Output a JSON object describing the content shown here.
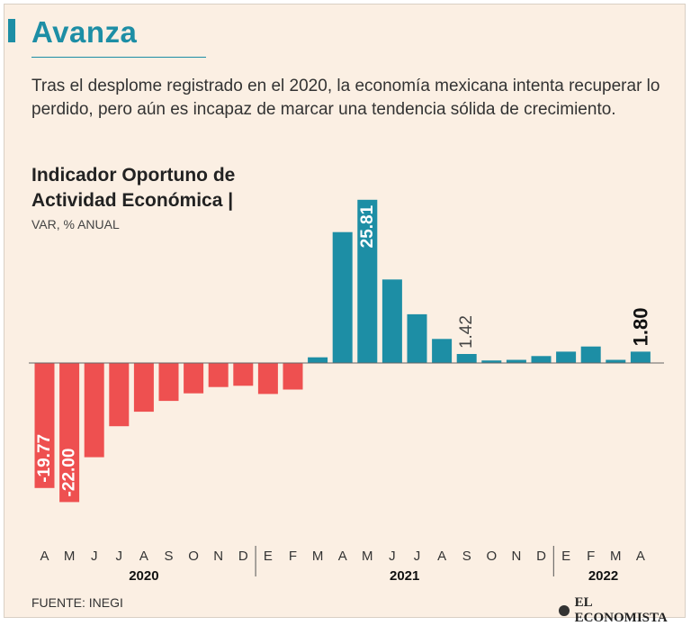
{
  "header": {
    "title": "Avanza",
    "subtitle": "Tras el desplome registrado en el 2020, la economía mexicana intenta recuperar lo perdido, pero aún es incapaz de marcar una tendencia sólida de crecimiento."
  },
  "chart_data": {
    "type": "bar",
    "title": "Indicador Oportuno de Actividad Económica |",
    "ylabel": "VAR, % ANUAL",
    "xlabel": "",
    "categories": [
      "A",
      "M",
      "J",
      "J",
      "A",
      "S",
      "O",
      "N",
      "D",
      "E",
      "F",
      "M",
      "A",
      "M",
      "J",
      "J",
      "A",
      "S",
      "O",
      "N",
      "D",
      "E",
      "F",
      "M",
      "A"
    ],
    "values": [
      -19.77,
      -22.0,
      -14.9,
      -10.0,
      -7.7,
      -6.0,
      -4.8,
      -3.8,
      -3.6,
      -4.9,
      -4.2,
      0.9,
      20.7,
      25.81,
      13.2,
      7.7,
      3.8,
      1.42,
      0.4,
      0.5,
      1.1,
      1.8,
      2.6,
      0.5,
      1.8
    ],
    "colors": {
      "negative": "#ee5050",
      "positive": "#1d8ea5",
      "axis": "#666666"
    },
    "labels": [
      {
        "index": 0,
        "text": "-19.77"
      },
      {
        "index": 1,
        "text": "-22.00"
      },
      {
        "index": 13,
        "text": "25.81"
      },
      {
        "index": 17,
        "text": "1.42"
      },
      {
        "index": 24,
        "text": "1.80"
      }
    ],
    "years": [
      {
        "label": "2020",
        "start": 0,
        "end": 8
      },
      {
        "label": "2021",
        "start": 9,
        "end": 20
      },
      {
        "label": "2022",
        "start": 21,
        "end": 24
      }
    ],
    "ylim": [
      -22,
      25.81
    ]
  },
  "footer": {
    "source": "FUENTE: INEGI",
    "brand": "EL ECONOMISTA"
  }
}
